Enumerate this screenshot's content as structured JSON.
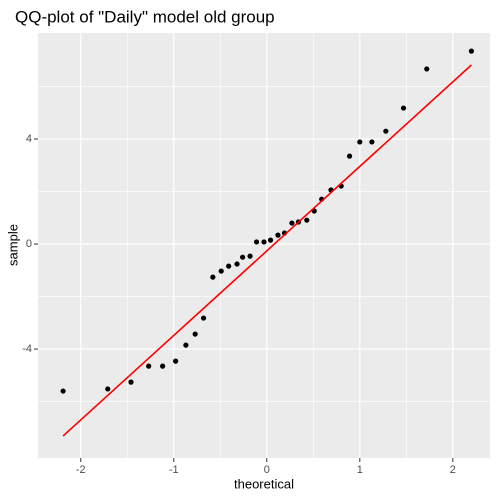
{
  "chart_data": {
    "type": "scatter",
    "title": "QQ-plot of \"Daily\" model old group",
    "x_label": "theoretical",
    "y_label": "sample",
    "x": [
      -2.19,
      -1.71,
      -1.46,
      -1.27,
      -1.12,
      -0.98,
      -0.87,
      -0.77,
      -0.68,
      -0.58,
      -0.49,
      -0.41,
      -0.32,
      -0.26,
      -0.18,
      -0.11,
      -0.03,
      0.04,
      0.12,
      0.19,
      0.27,
      0.34,
      0.43,
      0.51,
      0.59,
      0.69,
      0.8,
      0.89,
      1.0,
      1.13,
      1.28,
      1.47,
      1.72,
      2.2
    ],
    "values": [
      -5.6,
      -5.52,
      -5.26,
      -4.65,
      -4.65,
      -4.46,
      -3.85,
      -3.43,
      -2.82,
      -1.26,
      -1.03,
      -0.84,
      -0.76,
      -0.5,
      -0.46,
      0.08,
      0.08,
      0.15,
      0.34,
      0.42,
      0.8,
      0.84,
      0.91,
      1.26,
      1.71,
      2.06,
      2.21,
      3.35,
      3.89,
      3.89,
      4.3,
      5.18,
      6.67,
      7.35
    ],
    "color": "#000000",
    "line": {
      "x": [
        -2.19,
        2.2
      ],
      "values": [
        -7.31,
        6.82
      ],
      "color": "#FF0000"
    },
    "xlim": [
      -2.46,
      2.4
    ],
    "ylim": [
      -8.15,
      8.04
    ],
    "xticks": [
      -2,
      -1,
      0,
      1,
      2
    ],
    "yticks": [
      -4,
      0,
      4
    ],
    "grid": true,
    "minor_grid": true
  }
}
